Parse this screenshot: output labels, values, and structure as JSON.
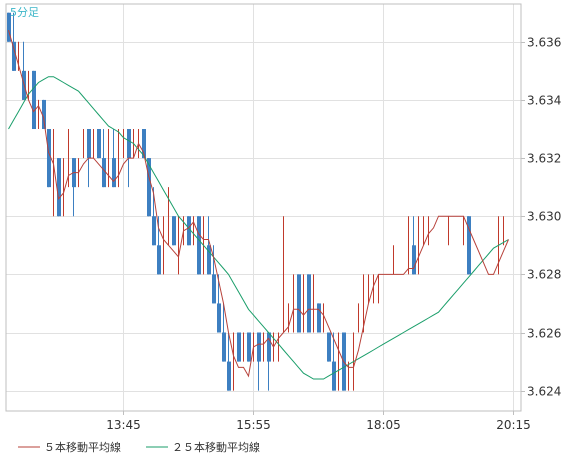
{
  "timeframe_label": "5分足",
  "colors": {
    "background": "#ffffff",
    "grid": "#e1e1e1",
    "frame": "#bfbfbf",
    "up_candle": "#c0392b",
    "down_candle": "#3d7fc1",
    "ma5": "#b7413a",
    "ma25": "#1a9e6a"
  },
  "chart_data": {
    "type": "candlestick",
    "title": "",
    "timeframe": "5分足",
    "x_tick_labels": [
      "13:45",
      "15:55",
      "18:05",
      "20:15"
    ],
    "x_tick_index": [
      23,
      49,
      75,
      101
    ],
    "y_ticks": [
      3.624,
      3.626,
      3.628,
      3.63,
      3.632,
      3.634,
      3.636
    ],
    "ylim": [
      3.6233,
      3.6373
    ],
    "grid": true,
    "legend_position": "bottom-left",
    "legend": [
      {
        "label": "５本移動平均線",
        "color": "#b7413a"
      },
      {
        "label": "２５本移動平均線",
        "color": "#1a9e6a"
      }
    ],
    "ohlc": [
      [
        3.637,
        3.637,
        3.636,
        3.636
      ],
      [
        3.636,
        3.637,
        3.635,
        3.635
      ],
      [
        3.635,
        3.636,
        3.635,
        3.635
      ],
      [
        3.635,
        3.636,
        3.634,
        3.634
      ],
      [
        3.634,
        3.635,
        3.634,
        3.635
      ],
      [
        3.635,
        3.635,
        3.633,
        3.633
      ],
      [
        3.633,
        3.634,
        3.633,
        3.634
      ],
      [
        3.634,
        3.634,
        3.633,
        3.633
      ],
      [
        3.633,
        3.633,
        3.631,
        3.631
      ],
      [
        3.631,
        3.633,
        3.63,
        3.632
      ],
      [
        3.632,
        3.632,
        3.63,
        3.63
      ],
      [
        3.63,
        3.632,
        3.63,
        3.632
      ],
      [
        3.632,
        3.633,
        3.631,
        3.632
      ],
      [
        3.632,
        3.632,
        3.63,
        3.631
      ],
      [
        3.631,
        3.632,
        3.631,
        3.632
      ],
      [
        3.632,
        3.633,
        3.632,
        3.633
      ],
      [
        3.633,
        3.633,
        3.631,
        3.632
      ],
      [
        3.632,
        3.633,
        3.632,
        3.633
      ],
      [
        3.633,
        3.633,
        3.632,
        3.632
      ],
      [
        3.632,
        3.633,
        3.631,
        3.631
      ],
      [
        3.631,
        3.633,
        3.631,
        3.632
      ],
      [
        3.632,
        3.633,
        3.631,
        3.631
      ],
      [
        3.631,
        3.633,
        3.631,
        3.632
      ],
      [
        3.632,
        3.633,
        3.632,
        3.633
      ],
      [
        3.633,
        3.633,
        3.631,
        3.632
      ],
      [
        3.632,
        3.633,
        3.632,
        3.632
      ],
      [
        3.632,
        3.633,
        3.632,
        3.633
      ],
      [
        3.633,
        3.633,
        3.632,
        3.632
      ],
      [
        3.632,
        3.632,
        3.63,
        3.63
      ],
      [
        3.63,
        3.631,
        3.629,
        3.629
      ],
      [
        3.629,
        3.63,
        3.628,
        3.628
      ],
      [
        3.628,
        3.63,
        3.628,
        3.629
      ],
      [
        3.629,
        3.631,
        3.629,
        3.63
      ],
      [
        3.63,
        3.63,
        3.629,
        3.629
      ],
      [
        3.629,
        3.63,
        3.628,
        3.63
      ],
      [
        3.63,
        3.63,
        3.629,
        3.63
      ],
      [
        3.63,
        3.63,
        3.629,
        3.629
      ],
      [
        3.629,
        3.63,
        3.629,
        3.63
      ],
      [
        3.63,
        3.63,
        3.628,
        3.628
      ],
      [
        3.628,
        3.63,
        3.628,
        3.629
      ],
      [
        3.629,
        3.63,
        3.628,
        3.628
      ],
      [
        3.628,
        3.629,
        3.627,
        3.627
      ],
      [
        3.627,
        3.628,
        3.626,
        3.626
      ],
      [
        3.626,
        3.627,
        3.625,
        3.625
      ],
      [
        3.625,
        3.626,
        3.624,
        3.624
      ],
      [
        3.624,
        3.626,
        3.624,
        3.626
      ],
      [
        3.626,
        3.626,
        3.625,
        3.625
      ],
      [
        3.625,
        3.626,
        3.625,
        3.626
      ],
      [
        3.626,
        3.626,
        3.625,
        3.625
      ],
      [
        3.625,
        3.626,
        3.625,
        3.626
      ],
      [
        3.626,
        3.626,
        3.624,
        3.625
      ],
      [
        3.625,
        3.626,
        3.625,
        3.626
      ],
      [
        3.626,
        3.626,
        3.624,
        3.625
      ],
      [
        3.625,
        3.626,
        3.625,
        3.626
      ],
      [
        3.626,
        3.626,
        3.625,
        3.626
      ],
      [
        3.626,
        3.63,
        3.626,
        3.626
      ],
      [
        3.626,
        3.627,
        3.626,
        3.627
      ],
      [
        3.627,
        3.628,
        3.626,
        3.628
      ],
      [
        3.628,
        3.628,
        3.626,
        3.626
      ],
      [
        3.626,
        3.628,
        3.626,
        3.628
      ],
      [
        3.628,
        3.628,
        3.626,
        3.626
      ],
      [
        3.626,
        3.628,
        3.626,
        3.627
      ],
      [
        3.627,
        3.627,
        3.626,
        3.626
      ],
      [
        3.626,
        3.627,
        3.626,
        3.626
      ],
      [
        3.626,
        3.626,
        3.625,
        3.625
      ],
      [
        3.625,
        3.626,
        3.624,
        3.624
      ],
      [
        3.624,
        3.626,
        3.624,
        3.626
      ],
      [
        3.626,
        3.626,
        3.624,
        3.624
      ],
      [
        3.624,
        3.625,
        3.624,
        3.625
      ],
      [
        3.625,
        3.626,
        3.624,
        3.626
      ],
      [
        3.626,
        3.627,
        3.626,
        3.627
      ],
      [
        3.627,
        3.628,
        3.626,
        3.628
      ],
      [
        3.628,
        3.628,
        3.627,
        3.628
      ],
      [
        3.628,
        3.628,
        3.627,
        3.628
      ],
      [
        3.628,
        3.628,
        3.627,
        3.628
      ],
      [
        3.628,
        3.628,
        3.628,
        3.628
      ],
      [
        3.628,
        3.628,
        3.628,
        3.628
      ],
      [
        3.628,
        3.629,
        3.628,
        3.628
      ],
      [
        3.628,
        3.628,
        3.628,
        3.628
      ],
      [
        3.628,
        3.628,
        3.628,
        3.628
      ],
      [
        3.628,
        3.63,
        3.628,
        3.629
      ],
      [
        3.629,
        3.63,
        3.628,
        3.628
      ],
      [
        3.628,
        3.63,
        3.628,
        3.63
      ],
      [
        3.63,
        3.63,
        3.629,
        3.63
      ],
      [
        3.63,
        3.63,
        3.629,
        3.63
      ],
      [
        3.63,
        3.63,
        3.63,
        3.63
      ],
      [
        3.63,
        3.63,
        3.63,
        3.63
      ],
      [
        3.63,
        3.63,
        3.63,
        3.63
      ],
      [
        3.63,
        3.63,
        3.629,
        3.63
      ],
      [
        3.63,
        3.63,
        3.63,
        3.63
      ],
      [
        3.63,
        3.63,
        3.63,
        3.63
      ],
      [
        3.63,
        3.63,
        3.629,
        3.63
      ],
      [
        3.63,
        3.63,
        3.628,
        3.628
      ],
      [
        3.628,
        3.628,
        3.628,
        3.628
      ],
      [
        3.628,
        3.628,
        3.628,
        3.628
      ],
      [
        3.628,
        3.628,
        3.628,
        3.628
      ],
      [
        3.628,
        3.628,
        3.628,
        3.628
      ],
      [
        3.628,
        3.628,
        3.628,
        3.628
      ],
      [
        3.628,
        3.63,
        3.628,
        3.63
      ],
      [
        3.63,
        3.63,
        3.629,
        3.63
      ],
      [
        3.63,
        3.63,
        3.63,
        3.63
      ]
    ],
    "ma5_values": [
      3.6364,
      3.6358,
      3.6352,
      3.6346,
      3.634,
      3.6336,
      3.6338,
      3.6334,
      3.6322,
      3.6318,
      3.6306,
      3.6308,
      3.6314,
      3.6315,
      3.6315,
      3.6318,
      3.632,
      3.632,
      3.6318,
      3.6316,
      3.6314,
      3.6312,
      3.6314,
      3.6318,
      3.632,
      3.632,
      3.6325,
      3.6322,
      3.6314,
      3.6308,
      3.6296,
      3.6292,
      3.629,
      3.6288,
      3.6286,
      3.6295,
      3.6296,
      3.6298,
      3.6294,
      3.6292,
      3.6292,
      3.6286,
      3.6278,
      3.627,
      3.626,
      3.6252,
      3.6248,
      3.6248,
      3.6245,
      3.6255,
      3.6256,
      3.6256,
      3.6258,
      3.6255,
      3.6258,
      3.626,
      3.6262,
      3.6268,
      3.6268,
      3.6266,
      3.6268,
      3.6268,
      3.6268,
      3.6266,
      3.6262,
      3.6258,
      3.6254,
      3.625,
      3.6248,
      3.6248,
      3.6254,
      3.6262,
      3.627,
      3.6276,
      3.628,
      3.628,
      3.628,
      3.628,
      3.628,
      3.628,
      3.6282,
      3.6282,
      3.6286,
      3.629,
      3.6294,
      3.6296,
      3.63,
      3.63,
      3.63,
      3.63,
      3.63,
      3.63,
      3.6296,
      3.6292,
      3.6288,
      3.6284,
      3.628,
      3.628,
      3.6284,
      3.6288,
      3.6292
    ],
    "ma25_values": [
      3.633,
      3.6333,
      3.6336,
      3.6339,
      3.6342,
      3.6344,
      3.6346,
      3.6347,
      3.6348,
      3.6348,
      3.6347,
      3.6346,
      3.6345,
      3.6344,
      3.6343,
      3.6341,
      3.6339,
      3.6337,
      3.6335,
      3.6333,
      3.6331,
      3.633,
      3.6329,
      3.6327,
      3.6326,
      3.6325,
      3.6323,
      3.6321,
      3.6318,
      3.6315,
      3.6312,
      3.6309,
      3.6306,
      3.6303,
      3.63,
      3.6298,
      3.6296,
      3.6294,
      3.6292,
      3.629,
      3.6288,
      3.6286,
      3.6284,
      3.6282,
      3.628,
      3.6277,
      3.6274,
      3.6271,
      3.6268,
      3.6266,
      3.6264,
      3.6262,
      3.626,
      3.6258,
      3.6256,
      3.6254,
      3.6252,
      3.625,
      3.6248,
      3.6246,
      3.6245,
      3.6244,
      3.6244,
      3.6244,
      3.6245,
      3.6246,
      3.6247,
      3.6248,
      3.6249,
      3.625,
      3.6251,
      3.6252,
      3.6253,
      3.6254,
      3.6255,
      3.6256,
      3.6257,
      3.6258,
      3.6259,
      3.626,
      3.6261,
      3.6262,
      3.6263,
      3.6264,
      3.6265,
      3.6266,
      3.6267,
      3.6269,
      3.6271,
      3.6273,
      3.6275,
      3.6277,
      3.6279,
      3.6281,
      3.6283,
      3.6285,
      3.6287,
      3.6289,
      3.629,
      3.6291,
      3.6292
    ]
  }
}
